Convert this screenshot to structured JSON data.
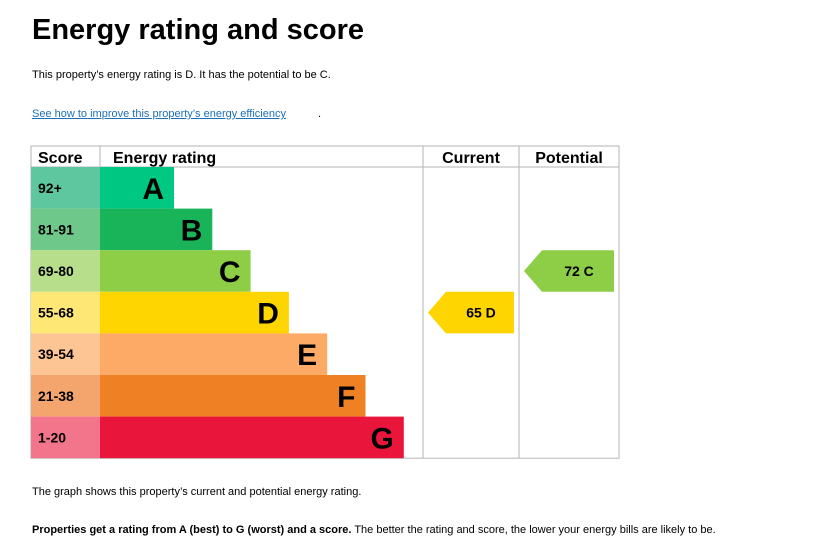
{
  "page": {
    "title": "Energy rating and score",
    "summary": "This property’s energy rating is D. It has the potential to be C.",
    "link_text": "See how to improve this property’s energy efficiency",
    "link_suffix": ".",
    "footer_graph": "The graph shows this property’s current and potential energy rating.",
    "footer_bold": "Properties get a rating from A (best) to G (worst) and a score.",
    "footer_rest": " The better the rating and score, the lower your energy bills are likely to be."
  },
  "chart_data": {
    "type": "bar",
    "headers": {
      "score": "Score",
      "rating": "Energy rating",
      "current": "Current",
      "potential": "Potential"
    },
    "bands": [
      {
        "score_range": "92+",
        "letter": "A",
        "color": "#5fc7a0",
        "bar_color": "#00c781",
        "level": 1
      },
      {
        "score_range": "81-91",
        "letter": "B",
        "color": "#6ec88a",
        "bar_color": "#19b459",
        "level": 2
      },
      {
        "score_range": "69-80",
        "letter": "C",
        "color": "#b7de8a",
        "bar_color": "#8dce46",
        "level": 3
      },
      {
        "score_range": "55-68",
        "letter": "D",
        "color": "#ffe775",
        "bar_color": "#ffd500",
        "level": 4
      },
      {
        "score_range": "39-54",
        "letter": "E",
        "color": "#fdc494",
        "bar_color": "#fcaa65",
        "level": 5
      },
      {
        "score_range": "21-38",
        "letter": "F",
        "color": "#f4a56e",
        "bar_color": "#ef8023",
        "level": 6
      },
      {
        "score_range": "1-20",
        "letter": "G",
        "color": "#f2758b",
        "bar_color": "#e9153b",
        "level": 7
      }
    ],
    "current": {
      "score": 65,
      "letter": "D",
      "label": "65  D",
      "color": "#ffd500"
    },
    "potential": {
      "score": 72,
      "letter": "C",
      "label": "72  C",
      "color": "#8dce46"
    }
  }
}
